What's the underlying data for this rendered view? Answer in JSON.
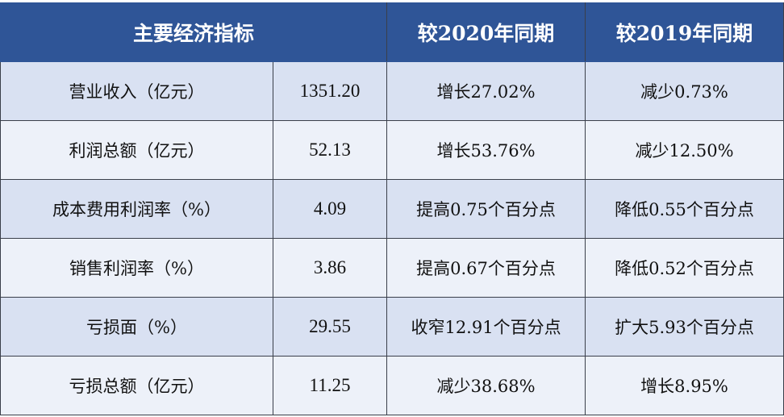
{
  "header": [
    "主要经济指标",
    "较2020年同期",
    "较2019年同期"
  ],
  "rows": [
    [
      "营业收入（亿元）",
      "1351.20",
      "增长27.02%",
      "减少0.73%"
    ],
    [
      "利润总额（亿元）",
      "52.13",
      "增长53.76%",
      "减少12.50%"
    ],
    [
      "成本费用利润率（%）",
      "4.09",
      "提高0.75个百分点",
      "降低0.55个百分点"
    ],
    [
      "销售利润率（%）",
      "3.86",
      "提高0.67个百分点",
      "降低0.52个百分点"
    ],
    [
      "亏损面（%）",
      "29.55",
      "收窄12.91个百分点",
      "扩大5.93个百分点"
    ],
    [
      "亏损总额（亿元）",
      "11.25",
      "减少38.68%",
      "增长8.95%"
    ]
  ],
  "colors": {
    "header_bg": "#2f5597",
    "row_odd": "#d9e1f2",
    "row_even": "#edf1f9"
  }
}
